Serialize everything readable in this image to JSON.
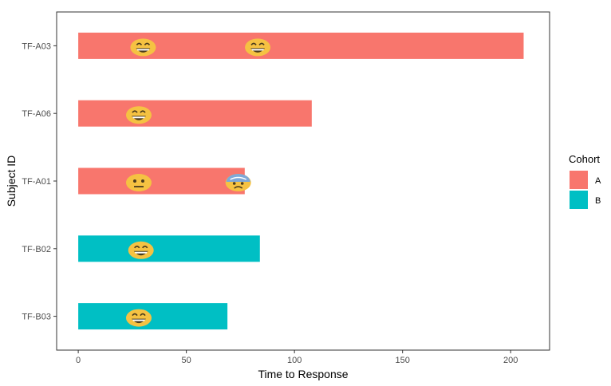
{
  "chart_data": {
    "type": "bar",
    "orientation": "horizontal",
    "xlabel": "Time to Response",
    "ylabel": "Subject ID",
    "xlim": [
      -10,
      218
    ],
    "x_ticks": [
      0,
      50,
      100,
      150,
      200
    ],
    "grid": false,
    "legend_position": "right",
    "legend": {
      "title": "Cohort",
      "entries": [
        {
          "key": "A",
          "label": "A",
          "color": "#F8766D"
        },
        {
          "key": "B",
          "label": "B",
          "color": "#00BFC4"
        }
      ]
    },
    "categories": [
      "TF-A03",
      "TF-A06",
      "TF-A01",
      "TF-B02",
      "TF-B03"
    ],
    "bars": [
      {
        "id": "TF-A03",
        "cohort": "A",
        "value": 206
      },
      {
        "id": "TF-A06",
        "cohort": "A",
        "value": 108
      },
      {
        "id": "TF-A01",
        "cohort": "A",
        "value": 77
      },
      {
        "id": "TF-B02",
        "cohort": "B",
        "value": 84
      },
      {
        "id": "TF-B03",
        "cohort": "B",
        "value": 69
      }
    ],
    "events": [
      {
        "id": "TF-A03",
        "x": 30,
        "emoji": "grinning-face-icon"
      },
      {
        "id": "TF-A03",
        "x": 83,
        "emoji": "grinning-face-icon"
      },
      {
        "id": "TF-A06",
        "x": 28,
        "emoji": "grinning-face-icon"
      },
      {
        "id": "TF-A01",
        "x": 28,
        "emoji": "neutral-face-icon"
      },
      {
        "id": "TF-A01",
        "x": 74,
        "emoji": "anxious-face-icon"
      },
      {
        "id": "TF-B02",
        "x": 29,
        "emoji": "grinning-face-icon"
      },
      {
        "id": "TF-B03",
        "x": 28,
        "emoji": "grinning-face-icon"
      }
    ]
  }
}
